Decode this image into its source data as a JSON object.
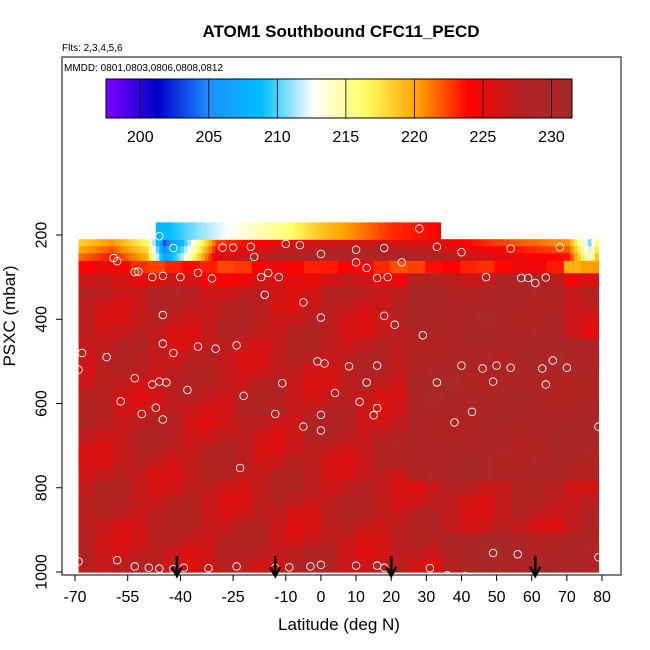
{
  "chart_data": {
    "type": "heatmap",
    "title": "ATOM1 Southbound CFC11_PECD",
    "flights_note": "Flts: 2,3,4,5,6",
    "dates_note": "MMDD: 0801,0803,0806,0808,0812",
    "xlabel": "Latitude (deg N)",
    "ylabel": "PSXC (mbar)",
    "xlim": [
      -70,
      80
    ],
    "ylim": [
      1000,
      100
    ],
    "x_ticks": [
      -70,
      -55,
      -40,
      -25,
      -10,
      0,
      10,
      20,
      30,
      40,
      50,
      60,
      70,
      80
    ],
    "y_ticks": [
      200,
      400,
      600,
      800,
      1000
    ],
    "colorbar": {
      "ticks": [
        200,
        205,
        210,
        215,
        220,
        225,
        230
      ],
      "range": [
        197.5,
        231.5
      ],
      "colors": [
        "#7f00ff",
        "#0000cd",
        "#1e90ff",
        "#00bfff",
        "#ffffff",
        "#ffff66",
        "#ffa500",
        "#ff0000",
        "#b22222",
        "#a52a2a"
      ]
    },
    "field_default": 227,
    "top_band": {
      "x_range": [
        -47,
        34
      ],
      "p_range": [
        170,
        210
      ],
      "values_by_lat": [
        [
          -47,
          208
        ],
        [
          -35,
          211
        ],
        [
          -20,
          214
        ],
        [
          -10,
          216
        ],
        [
          0,
          219
        ],
        [
          10,
          221
        ],
        [
          20,
          223
        ],
        [
          34,
          224
        ]
      ]
    },
    "upper_band": {
      "x_range": [
        -69,
        79
      ],
      "p_range": [
        210,
        260
      ],
      "values_by_lat": [
        [
          -69,
          220
        ],
        [
          -60,
          222
        ],
        [
          -50,
          218
        ],
        [
          -45,
          205
        ],
        [
          -40,
          210
        ],
        [
          -30,
          224
        ],
        [
          -10,
          227
        ],
        [
          10,
          228
        ],
        [
          30,
          227
        ],
        [
          50,
          224
        ],
        [
          70,
          222
        ],
        [
          76,
          212
        ],
        [
          79,
          220
        ]
      ]
    },
    "arrows_lat": [
      -41,
      -13,
      20,
      61
    ],
    "observations": [
      [
        -46,
        203
      ],
      [
        -42,
        231
      ],
      [
        -20,
        228
      ],
      [
        -25,
        230
      ],
      [
        -28,
        230
      ],
      [
        -10,
        221
      ],
      [
        -6,
        224
      ],
      [
        0,
        245
      ],
      [
        10,
        235
      ],
      [
        18,
        231
      ],
      [
        28,
        185
      ],
      [
        33,
        228
      ],
      [
        54,
        232
      ],
      [
        68,
        229
      ],
      [
        40,
        241
      ],
      [
        -59,
        255
      ],
      [
        -58,
        262
      ],
      [
        -53,
        288
      ],
      [
        -52,
        287
      ],
      [
        -48,
        300
      ],
      [
        -45,
        297
      ],
      [
        -40,
        300
      ],
      [
        -35,
        290
      ],
      [
        -31,
        303
      ],
      [
        -19,
        252
      ],
      [
        -17,
        300
      ],
      [
        -15,
        290
      ],
      [
        -12,
        300
      ],
      [
        10,
        265
      ],
      [
        13,
        278
      ],
      [
        16,
        302
      ],
      [
        19,
        300
      ],
      [
        23,
        265
      ],
      [
        47,
        300
      ],
      [
        57,
        302
      ],
      [
        59,
        302
      ],
      [
        61,
        314
      ],
      [
        64,
        301
      ],
      [
        -16,
        342
      ],
      [
        -5,
        360
      ],
      [
        0,
        396
      ],
      [
        18,
        392
      ],
      [
        21,
        413
      ],
      [
        29,
        438
      ],
      [
        -45,
        390
      ],
      [
        -45,
        458
      ],
      [
        -42,
        480
      ],
      [
        -30,
        470
      ],
      [
        -35,
        465
      ],
      [
        -24,
        462
      ],
      [
        -61,
        490
      ],
      [
        -68,
        480
      ],
      [
        -69,
        520
      ],
      [
        -1,
        500
      ],
      [
        1,
        505
      ],
      [
        8,
        512
      ],
      [
        16,
        510
      ],
      [
        40,
        510
      ],
      [
        46,
        517
      ],
      [
        50,
        510
      ],
      [
        54,
        515
      ],
      [
        63,
        517
      ],
      [
        70,
        515
      ],
      [
        66,
        498
      ],
      [
        -53,
        540
      ],
      [
        -48,
        555
      ],
      [
        -44,
        550
      ],
      [
        -46,
        548
      ],
      [
        -38,
        568
      ],
      [
        -11,
        552
      ],
      [
        4,
        575
      ],
      [
        13,
        550
      ],
      [
        33,
        550
      ],
      [
        49,
        548
      ],
      [
        64,
        555
      ],
      [
        -57,
        595
      ],
      [
        -51,
        625
      ],
      [
        -47,
        610
      ],
      [
        -45,
        638
      ],
      [
        -22,
        582
      ],
      [
        -13,
        625
      ],
      [
        -5,
        655
      ],
      [
        0,
        627
      ],
      [
        0,
        664
      ],
      [
        11,
        596
      ],
      [
        16,
        611
      ],
      [
        15,
        628
      ],
      [
        43,
        620
      ],
      [
        38,
        645
      ],
      [
        79,
        655
      ],
      [
        -23,
        753
      ],
      [
        -69,
        975
      ],
      [
        -58,
        972
      ],
      [
        -53,
        987
      ],
      [
        -49,
        990
      ],
      [
        -46,
        992
      ],
      [
        -42,
        993
      ],
      [
        -39,
        990
      ],
      [
        -32,
        991
      ],
      [
        -24,
        987
      ],
      [
        -13,
        990
      ],
      [
        -9,
        989
      ],
      [
        -3,
        987
      ],
      [
        0,
        983
      ],
      [
        10,
        985
      ],
      [
        16,
        985
      ],
      [
        18,
        990
      ],
      [
        31,
        991
      ],
      [
        36,
        1008
      ],
      [
        41,
        1010
      ],
      [
        49,
        955
      ],
      [
        56,
        958
      ],
      [
        79,
        965
      ]
    ]
  }
}
